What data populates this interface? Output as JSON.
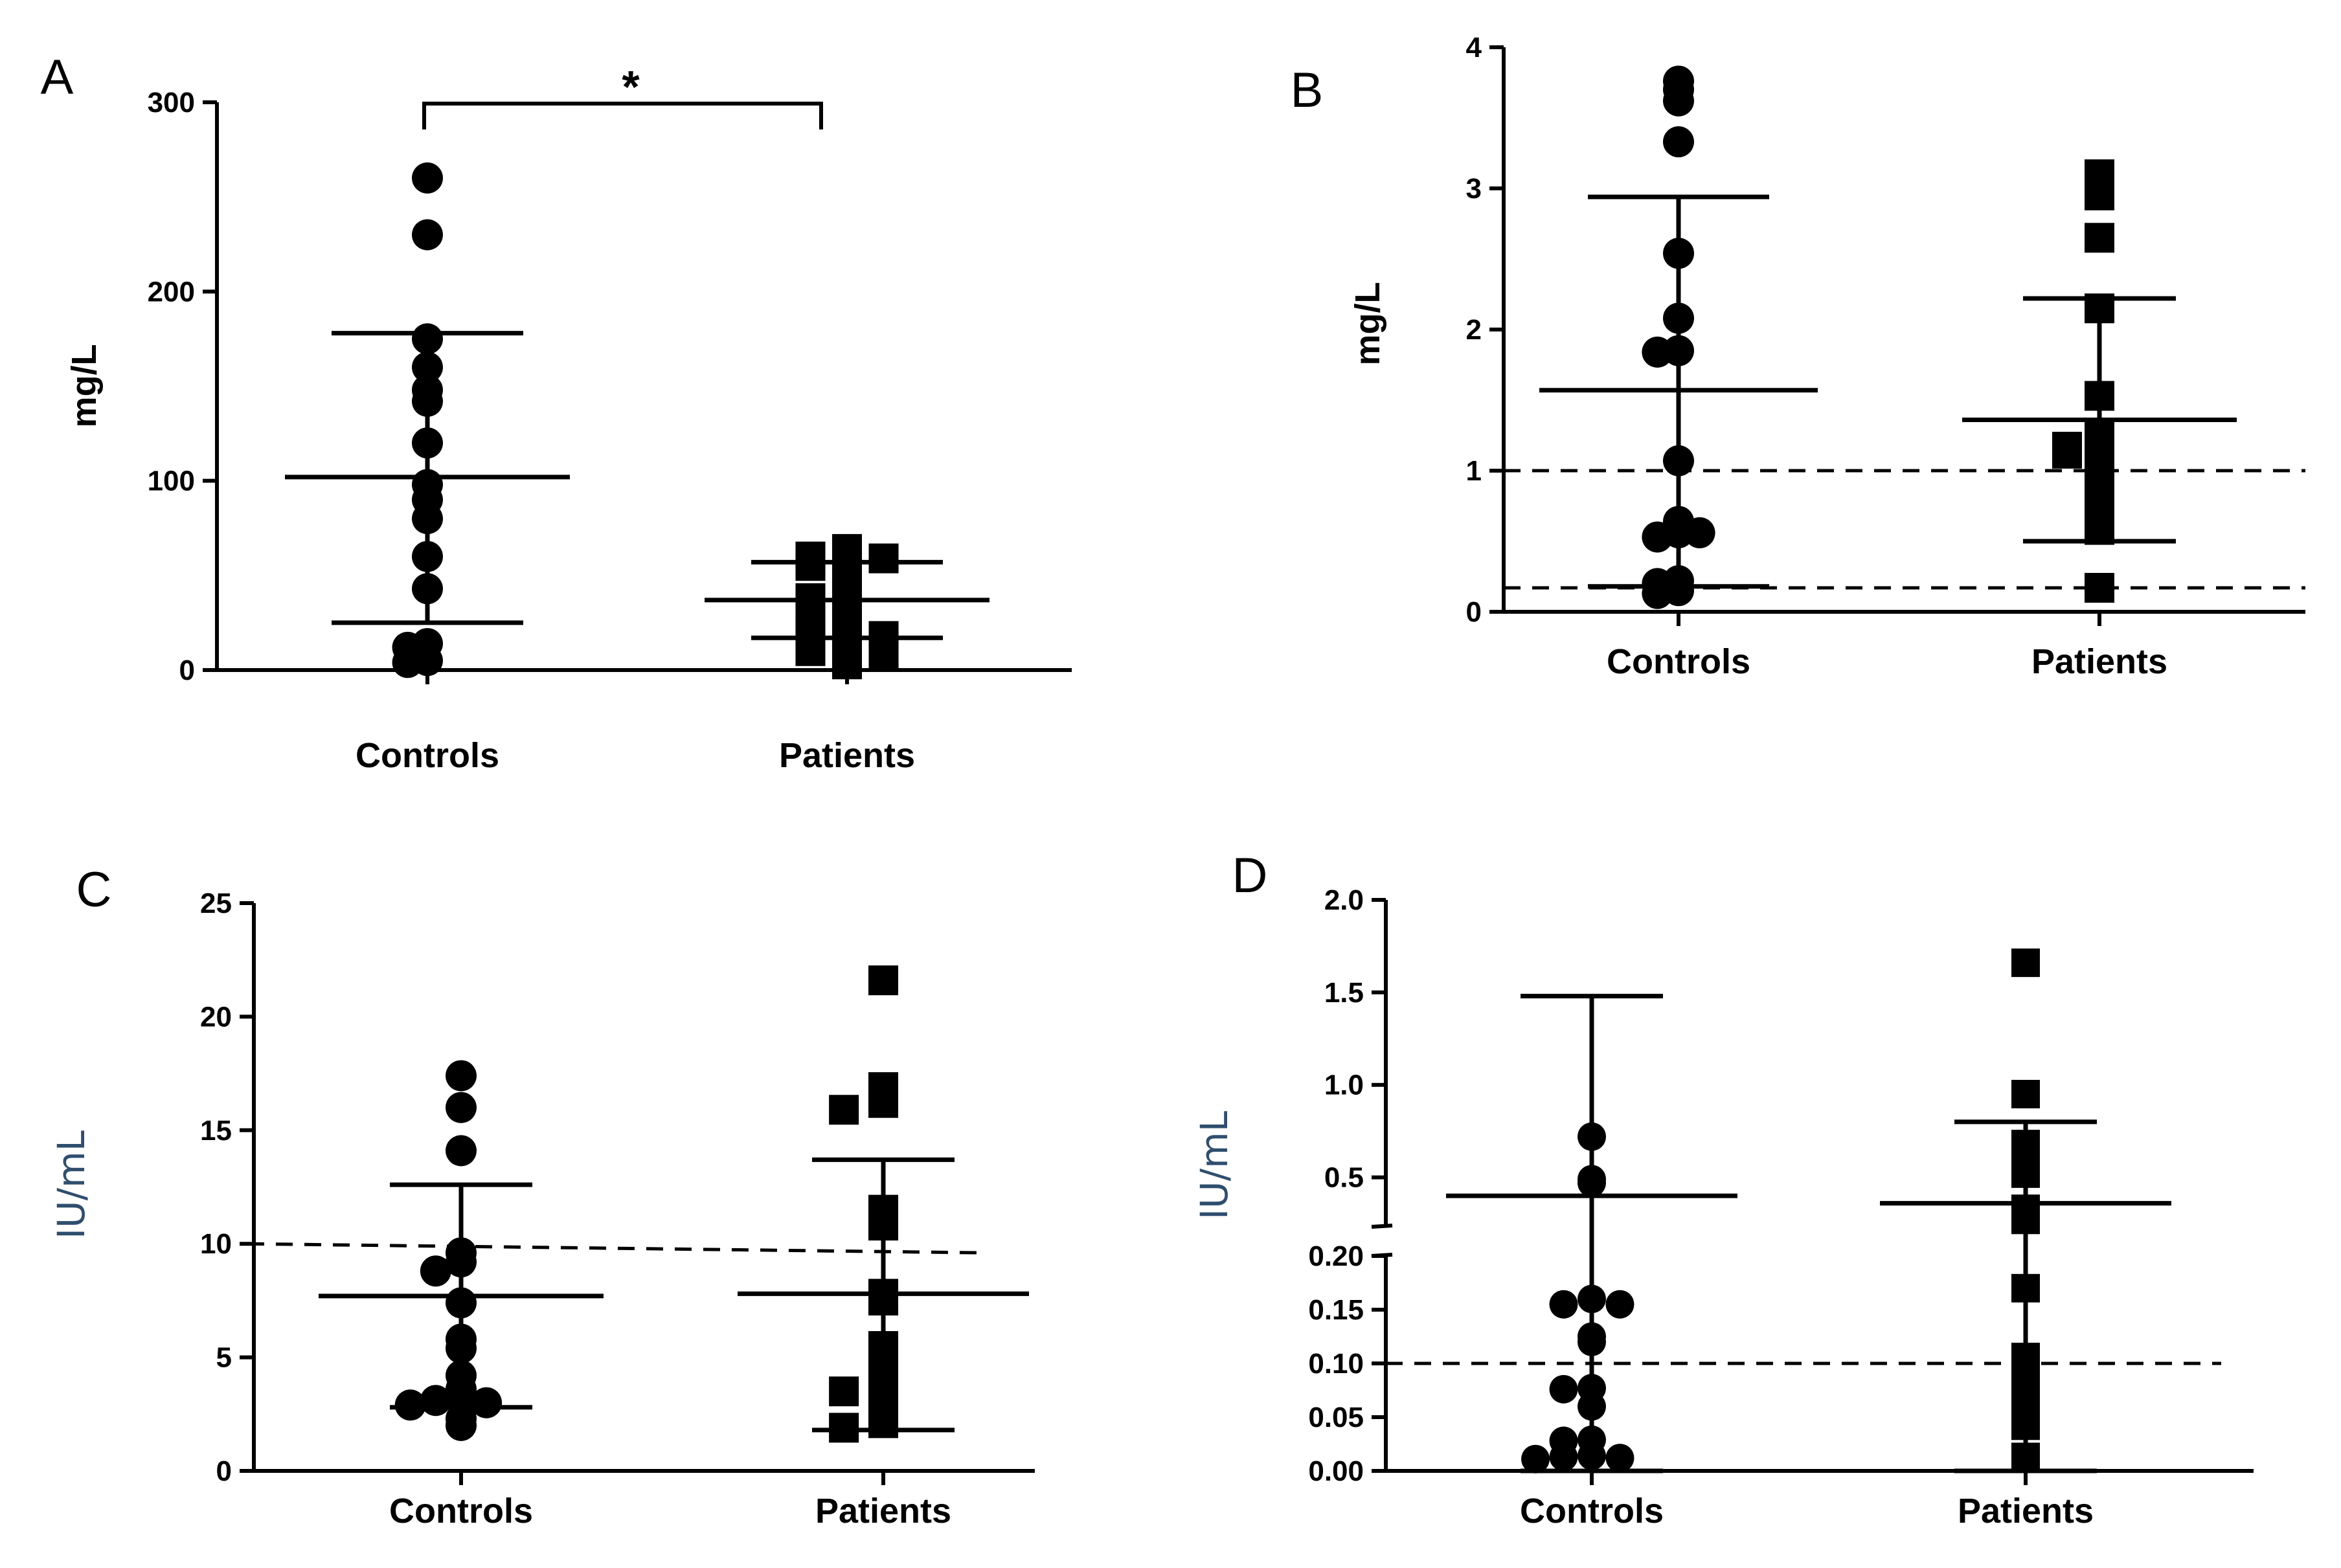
{
  "chart_data": [
    {
      "panel": "A",
      "type": "scatter",
      "ylabel": "mg/L",
      "ylim": [
        0,
        300
      ],
      "yticks": [
        "0",
        "100",
        "200",
        "300"
      ],
      "categories": [
        "Controls",
        "Patients"
      ],
      "significance": "*",
      "series": [
        {
          "name": "Controls",
          "marker": "circle",
          "mean": 102,
          "sd_upper": 178,
          "sd_lower": 25,
          "values": [
            260,
            230,
            175,
            160,
            148,
            142,
            120,
            98,
            90,
            80,
            60,
            43,
            14,
            12,
            5,
            4
          ]
        },
        {
          "name": "Patients",
          "marker": "square",
          "mean": 37,
          "sd_upper": 57,
          "sd_lower": 17,
          "values": [
            64,
            61,
            60,
            59,
            57,
            55,
            48,
            45,
            40,
            38,
            30,
            28,
            25,
            22,
            20,
            18,
            12,
            10,
            8,
            3
          ]
        }
      ]
    },
    {
      "panel": "B",
      "type": "scatter",
      "ylabel": "mg/L",
      "ylim": [
        0,
        4
      ],
      "yticks": [
        "0",
        "1",
        "2",
        "3",
        "4"
      ],
      "categories": [
        "Controls",
        "Patients"
      ],
      "reference_lines": [
        1.0,
        0.17
      ],
      "series": [
        {
          "name": "Controls",
          "marker": "circle",
          "mean": 1.57,
          "sd_upper": 2.94,
          "sd_lower": 0.18,
          "values": [
            3.76,
            3.7,
            3.62,
            3.33,
            2.54,
            2.08,
            1.85,
            1.84,
            1.07,
            0.64,
            0.56,
            0.53,
            0.56,
            0.22,
            0.2,
            0.15,
            0.13
          ]
        },
        {
          "name": "Patients",
          "marker": "square",
          "mean": 1.36,
          "sd_upper": 2.22,
          "sd_lower": 0.5,
          "values": [
            3.1,
            2.95,
            2.65,
            2.15,
            1.53,
            1.24,
            1.19,
            1.17,
            1.15,
            1.12,
            0.97,
            0.77,
            0.72,
            0.6,
            0.58,
            0.17
          ]
        }
      ]
    },
    {
      "panel": "C",
      "type": "scatter",
      "ylabel": "IU/mL",
      "ylim": [
        0,
        25
      ],
      "yticks": [
        "0",
        "5",
        "10",
        "15",
        "20",
        "25"
      ],
      "categories": [
        "Controls",
        "Patients"
      ],
      "reference_lines": [
        10.0
      ],
      "series": [
        {
          "name": "Controls",
          "marker": "circle",
          "mean": 7.7,
          "sd_upper": 12.6,
          "sd_lower": 2.8,
          "values": [
            17.4,
            16.0,
            14.1,
            9.6,
            9.2,
            8.8,
            7.4,
            5.8,
            5.4,
            4.2,
            3.6,
            3.2,
            3.1,
            3.0,
            2.9,
            2.3,
            2.0
          ]
        },
        {
          "name": "Patients",
          "marker": "square",
          "mean": 7.8,
          "sd_upper": 13.7,
          "sd_lower": 1.8,
          "values": [
            21.6,
            16.9,
            16.2,
            15.9,
            11.5,
            10.8,
            7.8,
            7.5,
            5.5,
            5.0,
            4.6,
            4.1,
            3.7,
            3.5,
            2.8,
            2.4,
            2.1,
            1.9
          ]
        }
      ]
    },
    {
      "panel": "D",
      "type": "scatter",
      "ylabel": "IU/mL",
      "axis_break": true,
      "ylim_lower": [
        0,
        0.2
      ],
      "ylim_upper": [
        0.2,
        2.0
      ],
      "yticks_lower": [
        "0.00",
        "0.05",
        "0.10",
        "0.15",
        "0.20"
      ],
      "yticks_upper": [
        "0.5",
        "1.0",
        "1.5",
        "2.0"
      ],
      "categories": [
        "Controls",
        "Patients"
      ],
      "reference_lines": [
        0.1
      ],
      "series": [
        {
          "name": "Controls",
          "marker": "circle",
          "mean": 0.4,
          "sd_upper": 1.48,
          "sd_lower": 0.0,
          "values": [
            0.72,
            0.49,
            0.47,
            0.16,
            0.155,
            0.155,
            0.125,
            0.12,
            0.077,
            0.076,
            0.06,
            0.029,
            0.028,
            0.014,
            0.013,
            0.012,
            0.011
          ]
        },
        {
          "name": "Patients",
          "marker": "square",
          "mean": 0.36,
          "sd_upper": 0.8,
          "sd_lower": 0.0,
          "values": [
            1.66,
            0.95,
            0.68,
            0.57,
            0.55,
            0.53,
            0.52,
            0.33,
            0.27,
            0.17,
            0.106,
            0.09,
            0.075,
            0.074,
            0.055,
            0.045,
            0.042,
            0.013
          ]
        }
      ]
    }
  ]
}
